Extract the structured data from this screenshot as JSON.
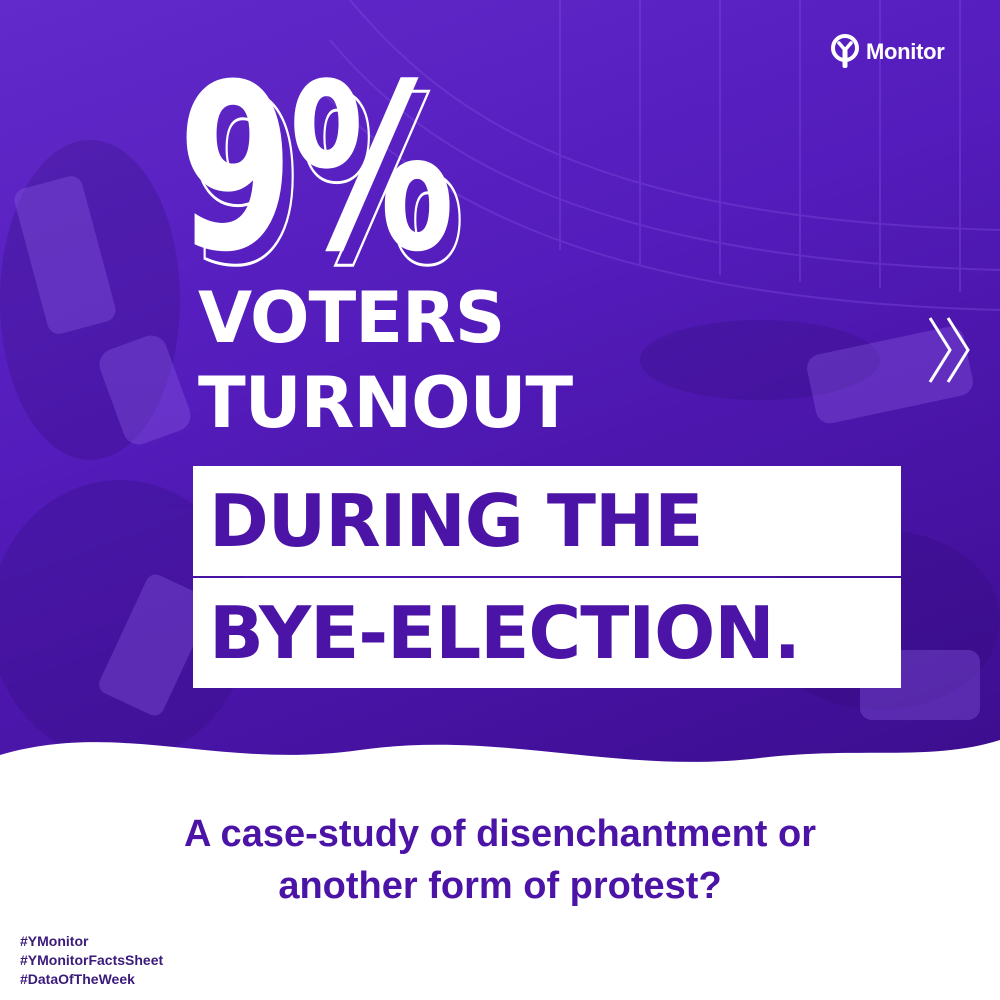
{
  "brand": {
    "logo_text": "Monitor",
    "logo_icon": "y-monitor-logo-icon"
  },
  "headline": {
    "stat": "9%",
    "line1": "VOTERS",
    "line2": "TURNOUT",
    "box_line1": "DURING THE",
    "box_line2": "BYE-ELECTION."
  },
  "subtitle": {
    "line1": "A case-study of disenchantment or",
    "line2": "another form of protest?"
  },
  "hashtags": [
    "#YMonitor",
    "#YMonitorFactsSheet",
    "#DataOfTheWeek"
  ],
  "icons": {
    "next": "double-chevron-right-icon"
  },
  "colors": {
    "brand_purple": "#4b14a6",
    "overlay_purple": "#5a1fc6",
    "white": "#ffffff"
  }
}
